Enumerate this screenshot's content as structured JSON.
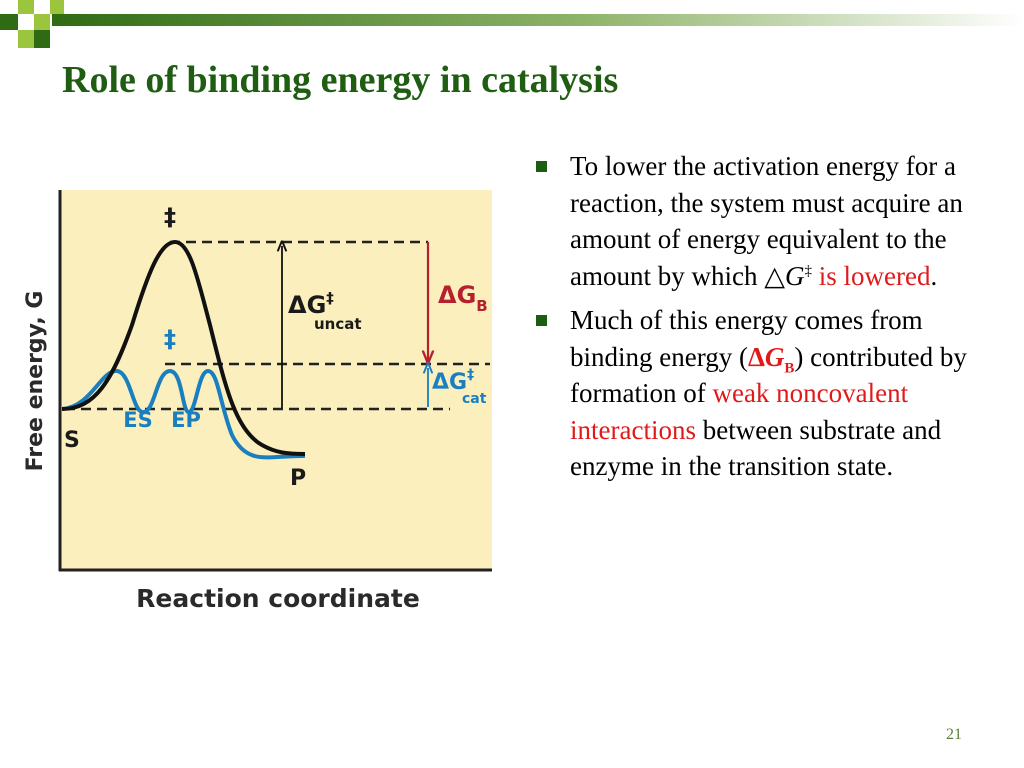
{
  "slide": {
    "title": "Role of binding energy in catalysis",
    "page_number": "21"
  },
  "figure": {
    "y_axis_label": "Free energy, G",
    "x_axis_label": "Reaction coordinate",
    "labels": {
      "ts_top": "‡",
      "ts_mid": "‡",
      "s": "S",
      "p": "P",
      "es": "ES",
      "ep": "EP",
      "dg_uncat_delta": "ΔG",
      "dg_uncat_sup": "‡",
      "dg_uncat_sub": "uncat",
      "dg_b_delta": "ΔG",
      "dg_b_sub": "B",
      "dg_cat_delta": "ΔG",
      "dg_cat_sup": "‡",
      "dg_cat_sub": "cat"
    },
    "colors": {
      "background": "#fbefbe",
      "uncatalyzed_curve": "#111111",
      "catalyzed_curve": "#1a7fc1",
      "dg_b_arrow": "#b5202e",
      "dg_cat_arrow": "#1a7fc1"
    }
  },
  "bullets": [
    {
      "text_before": "To lower the activation energy for a reaction, the system must acquire an amount of energy equivalent to the amount by which ",
      "symbol": "△",
      "g": "G",
      "sup": "‡",
      "highlight": " is lowered",
      "text_after": "."
    },
    {
      "text_before": "Much of this energy comes from binding energy (",
      "delta": "Δ",
      "g": "G",
      "sub": "B",
      "close": ")",
      "text_mid": " contributed by formation of ",
      "highlight": "weak noncovalent interactions",
      "text_after": " between substrate and enzyme in the transition state."
    }
  ]
}
